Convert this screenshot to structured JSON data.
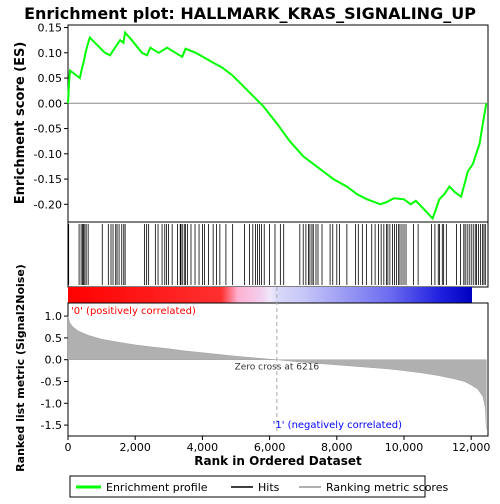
{
  "chart_data": {
    "type": "line",
    "title": "Enrichment plot: HALLMARK_KRAS_SIGNALING_UP",
    "xlabel": "Rank in Ordered Dataset",
    "xlim": [
      0,
      12500
    ],
    "x_ticks": [
      0,
      2000,
      4000,
      6000,
      8000,
      10000,
      12000
    ],
    "x_tick_labels": [
      "0",
      "2,000",
      "4,000",
      "6,000",
      "8,000",
      "10,000",
      "12,000"
    ],
    "es_panel": {
      "ylabel": "Enrichment score (ES)",
      "ylim": [
        -0.235,
        0.155
      ],
      "y_ticks": [
        0.15,
        0.1,
        0.05,
        0.0,
        -0.05,
        -0.1,
        -0.15,
        -0.2
      ],
      "y_tick_labels": [
        "0.15",
        "0.10",
        "0.05",
        "0.00",
        "-0.05",
        "-0.10",
        "-0.15",
        "-0.20"
      ],
      "series": [
        {
          "name": "Enrichment profile",
          "color": "#00ff00",
          "points": [
            [
              0,
              0.0
            ],
            [
              30,
              0.04
            ],
            [
              60,
              0.065
            ],
            [
              350,
              0.05
            ],
            [
              420,
              0.07
            ],
            [
              480,
              0.085
            ],
            [
              520,
              0.1
            ],
            [
              580,
              0.115
            ],
            [
              650,
              0.13
            ],
            [
              800,
              0.12
            ],
            [
              1100,
              0.1
            ],
            [
              1250,
              0.095
            ],
            [
              1400,
              0.11
            ],
            [
              1550,
              0.125
            ],
            [
              1650,
              0.12
            ],
            [
              1700,
              0.14
            ],
            [
              1900,
              0.125
            ],
            [
              2200,
              0.1
            ],
            [
              2350,
              0.095
            ],
            [
              2450,
              0.11
            ],
            [
              2700,
              0.1
            ],
            [
              2950,
              0.11
            ],
            [
              3200,
              0.1
            ],
            [
              3400,
              0.092
            ],
            [
              3500,
              0.108
            ],
            [
              3800,
              0.1
            ],
            [
              4200,
              0.085
            ],
            [
              4600,
              0.07
            ],
            [
              4900,
              0.055
            ],
            [
              5200,
              0.035
            ],
            [
              5500,
              0.015
            ],
            [
              5800,
              -0.005
            ],
            [
              6216,
              -0.04
            ],
            [
              6600,
              -0.075
            ],
            [
              7000,
              -0.105
            ],
            [
              7300,
              -0.12
            ],
            [
              7600,
              -0.135
            ],
            [
              7900,
              -0.15
            ],
            [
              8300,
              -0.165
            ],
            [
              8600,
              -0.18
            ],
            [
              8900,
              -0.19
            ],
            [
              9100,
              -0.195
            ],
            [
              9300,
              -0.2
            ],
            [
              9500,
              -0.195
            ],
            [
              9700,
              -0.188
            ],
            [
              10000,
              -0.19
            ],
            [
              10200,
              -0.2
            ],
            [
              10350,
              -0.193
            ],
            [
              10600,
              -0.21
            ],
            [
              10850,
              -0.228
            ],
            [
              10950,
              -0.21
            ],
            [
              11050,
              -0.19
            ],
            [
              11200,
              -0.18
            ],
            [
              11350,
              -0.165
            ],
            [
              11500,
              -0.175
            ],
            [
              11700,
              -0.185
            ],
            [
              11800,
              -0.16
            ],
            [
              11900,
              -0.135
            ],
            [
              12050,
              -0.12
            ],
            [
              12150,
              -0.1
            ],
            [
              12250,
              -0.08
            ],
            [
              12320,
              -0.05
            ],
            [
              12400,
              -0.02
            ],
            [
              12450,
              0.0
            ]
          ]
        }
      ],
      "zero_line": 0.0
    },
    "hits_panel": {
      "legend": "Hits",
      "hit_ranks": [
        20,
        330,
        390,
        430,
        460,
        500,
        540,
        600,
        1020,
        1200,
        1280,
        1340,
        1420,
        1460,
        1520,
        1600,
        1660,
        1700,
        2280,
        2340,
        2400,
        2600,
        2680,
        2800,
        2880,
        2930,
        2990,
        3100,
        3260,
        3340,
        3360,
        3400,
        3460,
        3500,
        3560,
        3660,
        3780,
        3900,
        4000,
        4060,
        4180,
        4320,
        4420,
        4520,
        4700,
        4900,
        5250,
        5400,
        5500,
        5580,
        5640,
        5700,
        5760,
        5840,
        6000,
        6160,
        6320,
        6420,
        6900,
        7000,
        7080,
        7160,
        7200,
        7260,
        7300,
        7380,
        7440,
        7560,
        7800,
        7880,
        8000,
        8080,
        8300,
        8560,
        8640,
        8760,
        8880,
        9040,
        9140,
        9240,
        9320,
        9400,
        9480,
        9520,
        9580,
        9660,
        9720,
        9780,
        9840,
        9880,
        9940,
        10000,
        10060,
        10280,
        10420,
        10820,
        10920,
        11020,
        11060,
        11140,
        11180,
        11260,
        11560,
        11680,
        11780,
        11820,
        11880,
        11940,
        12000,
        12060,
        12120,
        12160,
        12220,
        12280,
        12340,
        12380,
        12420
      ]
    },
    "ranked_metric_panel": {
      "ylabel": "Ranked list metric (Signal2Noise)",
      "legend": "Ranking metric scores",
      "ylim": [
        -1.75,
        1.3
      ],
      "y_ticks": [
        1.0,
        0.5,
        0.0,
        -0.5,
        -1.0,
        -1.5
      ],
      "y_tick_labels": [
        "1.0",
        "0.5",
        "0.0",
        "-0.5",
        "-1.0",
        "-1.5"
      ],
      "color": "#b0b0b0",
      "points": [
        [
          0,
          1.0
        ],
        [
          50,
          0.85
        ],
        [
          150,
          0.75
        ],
        [
          300,
          0.66
        ],
        [
          600,
          0.56
        ],
        [
          1000,
          0.47
        ],
        [
          1500,
          0.4
        ],
        [
          2000,
          0.34
        ],
        [
          2500,
          0.29
        ],
        [
          3000,
          0.25
        ],
        [
          3500,
          0.2
        ],
        [
          4000,
          0.16
        ],
        [
          4500,
          0.12
        ],
        [
          5000,
          0.08
        ],
        [
          5500,
          0.045
        ],
        [
          6000,
          0.012
        ],
        [
          6216,
          0.0
        ],
        [
          6600,
          -0.03
        ],
        [
          7000,
          -0.06
        ],
        [
          7500,
          -0.09
        ],
        [
          8000,
          -0.12
        ],
        [
          8500,
          -0.15
        ],
        [
          9000,
          -0.18
        ],
        [
          9500,
          -0.21
        ],
        [
          10000,
          -0.25
        ],
        [
          10500,
          -0.3
        ],
        [
          11000,
          -0.36
        ],
        [
          11500,
          -0.44
        ],
        [
          11800,
          -0.5
        ],
        [
          12000,
          -0.58
        ],
        [
          12200,
          -0.68
        ],
        [
          12350,
          -0.85
        ],
        [
          12420,
          -1.1
        ],
        [
          12450,
          -1.6
        ]
      ],
      "zero_cross_rank": 6216,
      "zero_cross_label": "Zero cross at 6216",
      "positive_label": "'0' (positively correlated)",
      "negative_label": "'1' (negatively correlated)",
      "positive_color": "#ff0000",
      "negative_color": "#0000ff"
    },
    "legend": {
      "entries": [
        "Enrichment profile",
        "Hits",
        "Ranking metric scores"
      ],
      "placement": "bottom"
    }
  }
}
